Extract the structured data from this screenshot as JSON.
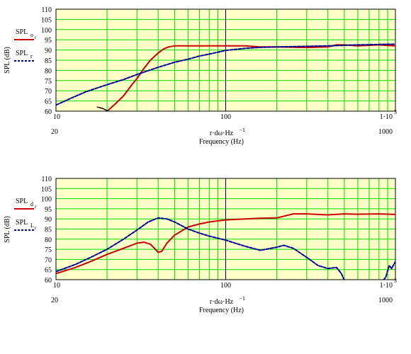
{
  "chart_data": [
    {
      "type": "line",
      "x_scale": "log",
      "xlim": [
        10,
        1000
      ],
      "ylim": [
        60,
        110
      ],
      "grid": true,
      "colors": {
        "grid": "#00dd00",
        "plot_bg": "#ffffc8",
        "series_red": "#cc0000",
        "series_blue": "#000099"
      },
      "yticks": [
        "110",
        "105",
        "100",
        "95",
        "90",
        "85",
        "80",
        "75",
        "70",
        "65",
        "60"
      ],
      "xtick_top": [
        "10",
        "100",
        "1·10"
      ],
      "xtick_top_exp": "3",
      "xtick_bottom": [
        "20",
        "1000"
      ],
      "xlabel_expr": "r·dω·Hz",
      "xlabel_exp": "−1",
      "xlabel": "Frequency (Hz)",
      "ylabel": "SPL (dB)",
      "legend": [
        {
          "name": "SPL",
          "sub": "o",
          "subsub": "r",
          "color": "#cc0000",
          "style": "solid"
        },
        {
          "name": "SPL",
          "sub": "r",
          "subsub": "",
          "color": "#000099",
          "style": "dashed"
        }
      ],
      "series": [
        {
          "color": "#cc0000",
          "style": "solid",
          "width": 2,
          "x": [
            20,
            22,
            25,
            28,
            30,
            33,
            36,
            40,
            43,
            46,
            50,
            60,
            80,
            100,
            130,
            160,
            200,
            300,
            400,
            450,
            500,
            600,
            700,
            800,
            900,
            1000
          ],
          "y": [
            60,
            63,
            67.5,
            73,
            76,
            81,
            85,
            88.5,
            90.5,
            91.5,
            92,
            92,
            92,
            92,
            92,
            91.5,
            91.5,
            91.2,
            91.5,
            92.5,
            92.5,
            92,
            92.3,
            92.5,
            92.2,
            92
          ]
        },
        {
          "color": "#000099",
          "style": "dashed",
          "width": 2,
          "x": [
            10,
            12,
            15,
            20,
            25,
            30,
            40,
            50,
            60,
            70,
            80,
            100,
            130,
            160,
            200,
            300,
            400,
            500,
            600,
            700,
            800,
            900,
            1000
          ],
          "y": [
            63,
            66,
            69.5,
            73,
            75.5,
            78,
            81.5,
            84,
            85.5,
            87,
            88,
            89.8,
            90.8,
            91.3,
            91.5,
            91.8,
            92,
            92.3,
            92.5,
            92.6,
            92.7,
            92.8,
            92.8
          ]
        },
        {
          "color": "#000000",
          "style": "solid",
          "width": 1.5,
          "x": [
            17.5,
            18,
            19,
            20,
            21,
            22
          ],
          "y": [
            62,
            61.8,
            61.2,
            60.2,
            59.6,
            59.2
          ]
        }
      ]
    },
    {
      "type": "line",
      "x_scale": "log",
      "xlim": [
        10,
        1000
      ],
      "ylim": [
        60,
        110
      ],
      "grid": true,
      "colors": {
        "grid": "#00dd00",
        "plot_bg": "#ffffc8",
        "series_red": "#cc0000",
        "series_blue": "#000099"
      },
      "yticks": [
        "110",
        "105",
        "100",
        "95",
        "90",
        "85",
        "80",
        "75",
        "70",
        "65",
        "60"
      ],
      "xtick_top": [
        "10",
        "100",
        "1·10"
      ],
      "xtick_top_exp": "3",
      "xtick_bottom": [
        "20",
        "1000"
      ],
      "xlabel_expr": "r·dω·Hz",
      "xlabel_exp": "−1",
      "xlabel": "Frequency (Hz)",
      "ylabel": "SPL (dB)",
      "legend": [
        {
          "name": "SPL",
          "sub": "d",
          "subsub": "r",
          "color": "#cc0000",
          "style": "solid"
        },
        {
          "name": "SPL",
          "sub": "L",
          "subsub": "r",
          "color": "#000099",
          "style": "dashed"
        }
      ],
      "series": [
        {
          "color": "#cc0000",
          "style": "solid",
          "width": 2,
          "x": [
            10,
            13,
            16,
            20,
            25,
            30,
            33,
            36,
            38,
            40,
            42,
            45,
            50,
            60,
            70,
            80,
            100,
            130,
            160,
            200,
            250,
            300,
            400,
            500,
            600,
            800,
            1000
          ],
          "y": [
            63,
            66,
            69,
            72.5,
            75.5,
            78,
            78.5,
            77.5,
            75.5,
            73.5,
            74,
            78,
            82,
            86,
            87.5,
            88.5,
            89.5,
            90,
            90.3,
            90.5,
            92.5,
            92.5,
            92,
            92.5,
            92.3,
            92.5,
            92.2
          ]
        },
        {
          "color": "#000099",
          "style": "dashed",
          "width": 2,
          "x": [
            10,
            13,
            16,
            20,
            25,
            30,
            35,
            40,
            45,
            50,
            60,
            70,
            80,
            100,
            130,
            160,
            200,
            220,
            250,
            300,
            350,
            400,
            450,
            480,
            500
          ],
          "y": [
            64,
            67.5,
            71,
            75,
            80,
            84.5,
            88.5,
            90.5,
            90,
            88.5,
            85,
            83,
            81.5,
            79.5,
            76.5,
            74.5,
            76,
            77,
            75.5,
            71,
            67,
            65.5,
            66,
            63,
            59.8
          ]
        },
        {
          "color": "#000099",
          "style": "dashed",
          "width": 2,
          "x": [
            850,
            880,
            920,
            950,
            1000
          ],
          "y": [
            59.8,
            61.5,
            67,
            65.5,
            69
          ]
        }
      ]
    }
  ]
}
